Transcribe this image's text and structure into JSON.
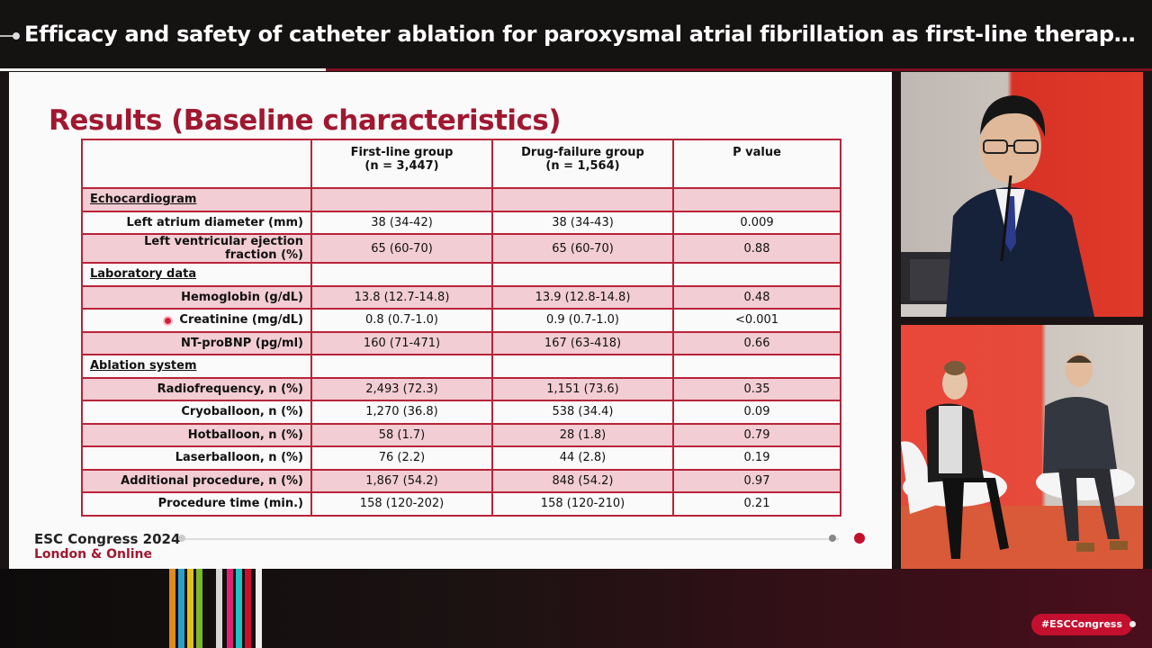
{
  "header": {
    "title": "Efficacy and safety of catheter ablation for paroxysmal atrial fibrillation as first-line therapy vs. aft..."
  },
  "slide": {
    "title": "Results (Baseline characteristics)",
    "columns": {
      "c1": "First-line group",
      "c1_n": "(n = 3,447)",
      "c2": "Drug-failure group",
      "c2_n": "(n = 1,564)",
      "p": "P value"
    },
    "rows": [
      {
        "section": "Echocardiogram"
      },
      {
        "label": "Left atrium diameter (mm)",
        "c1": "38 (34-42)",
        "c2": "38 (34-43)",
        "p": "0.009"
      },
      {
        "label": "Left ventricular ejection fraction (%)",
        "c1": "65 (60-70)",
        "c2": "65 (60-70)",
        "p": "0.88"
      },
      {
        "section": "Laboratory data"
      },
      {
        "label": "Hemoglobin (g/dL)",
        "c1": "13.8 (12.7-14.8)",
        "c2": "13.9 (12.8-14.8)",
        "p": "0.48"
      },
      {
        "label": "Creatinine (mg/dL)",
        "c1": "0.8 (0.7-1.0)",
        "c2": "0.9 (0.7-1.0)",
        "p": "<0.001"
      },
      {
        "label": "NT-proBNP (pg/ml)",
        "c1": "160 (71-471)",
        "c2": "167 (63-418)",
        "p": "0.66"
      },
      {
        "section": "Ablation system"
      },
      {
        "label": "Radiofrequency, n (%)",
        "c1": "2,493 (72.3)",
        "c2": "1,151 (73.6)",
        "p": "0.35"
      },
      {
        "label": "Cryoballoon, n (%)",
        "c1": "1,270 (36.8)",
        "c2": "538 (34.4)",
        "p": "0.09"
      },
      {
        "label": "Hotballoon, n (%)",
        "c1": "58 (1.7)",
        "c2": "28 (1.8)",
        "p": "0.79"
      },
      {
        "label": "Laserballoon, n (%)",
        "c1": "76 (2.2)",
        "c2": "44 (2.8)",
        "p": "0.19"
      },
      {
        "label": "Additional procedure, n (%)",
        "c1": "1,867 (54.2)",
        "c2": "848 (54.2)",
        "p": "0.97"
      },
      {
        "label": "Procedure time (min.)",
        "c1": "158 (120-202)",
        "c2": "158 (120-210)",
        "p": "0.21"
      }
    ],
    "footer": {
      "congress": "ESC Congress 2024",
      "location": "London & Online"
    }
  },
  "hashtag": "#ESCCongress",
  "colors": {
    "accent": "#a01830",
    "row_highlight": "#f2cdd3"
  }
}
